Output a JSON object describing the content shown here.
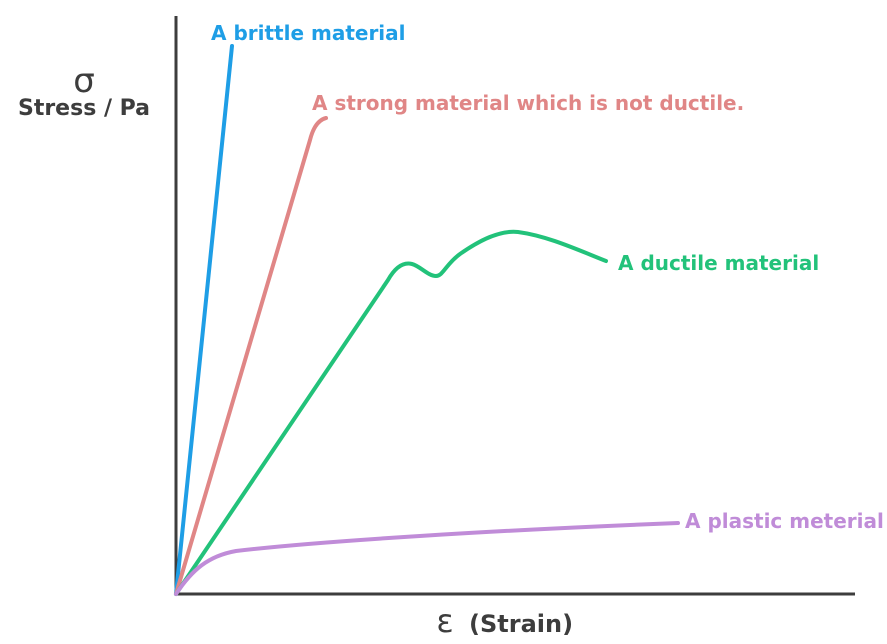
{
  "chart_data": {
    "type": "line",
    "y_axis_symbol": "σ",
    "ylabel": "Stress / Pa",
    "x_axis_symbol": "ε",
    "xlabel": "(Strain)",
    "colors": {
      "axis": "#3d3d3d",
      "label_text": "#3d3d3d"
    },
    "series": [
      {
        "name": "A brittle material",
        "color": "#1e9ee6",
        "label_position": "end-above"
      },
      {
        "name": "A strong material which is not ductile.",
        "color": "#e08686",
        "label_position": "end-right"
      },
      {
        "name": "A ductile material",
        "color": "#22c27a",
        "label_position": "end-right"
      },
      {
        "name": "A plastic meterial",
        "color": "#c08cd8",
        "label_position": "end-right"
      }
    ]
  }
}
